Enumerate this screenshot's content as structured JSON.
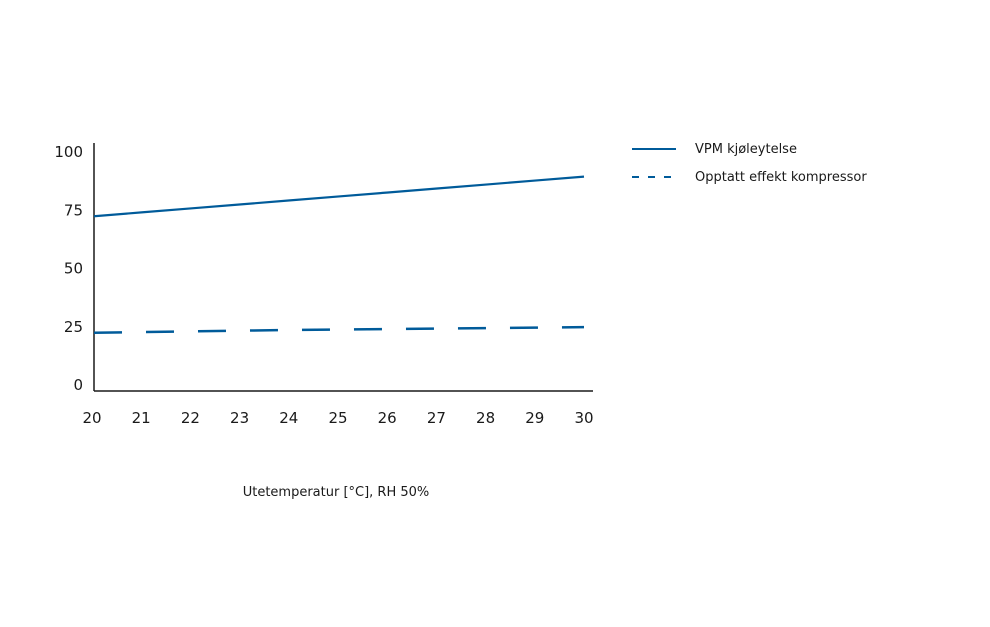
{
  "chart_data": {
    "type": "line",
    "title": "",
    "xlabel": "Utetemperatur [°C], RH 50%",
    "ylabel": "",
    "x": [
      20,
      21,
      22,
      23,
      24,
      25,
      26,
      27,
      28,
      29,
      30
    ],
    "x_tick_labels": [
      "20",
      "21",
      "22",
      "23",
      "24",
      "25",
      "26",
      "27",
      "28",
      "29",
      "30"
    ],
    "y_tick_labels": [
      "0",
      "25",
      "50",
      "75",
      "100"
    ],
    "y_ticks": [
      0,
      25,
      50,
      75,
      100
    ],
    "xlim": [
      20,
      30
    ],
    "ylim": [
      -3,
      105
    ],
    "grid": false,
    "legend_position": "top-right",
    "series": [
      {
        "name": "VPM kjøleytelse",
        "style": "solid",
        "color": "#005b9a",
        "values": [
          72.0,
          73.7,
          75.4,
          77.1,
          78.8,
          80.5,
          82.2,
          83.9,
          85.6,
          87.3,
          89.0
        ]
      },
      {
        "name": "Opptatt effekt kompressor",
        "style": "dashed",
        "color": "#005b9a",
        "values": [
          22.0,
          22.3,
          22.6,
          22.9,
          23.2,
          23.4,
          23.6,
          23.8,
          24.0,
          24.2,
          24.4
        ]
      }
    ]
  }
}
